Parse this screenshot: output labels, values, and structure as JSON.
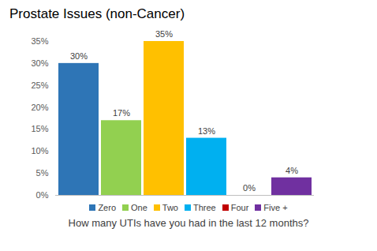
{
  "chart_data": {
    "type": "bar",
    "title": "Prostate Issues (non-Cancer)",
    "x_label": "How many UTIs have you had in the last 12 months?",
    "categories": [
      "Zero",
      "One",
      "Two",
      "Three",
      "Four",
      "Five +"
    ],
    "values": [
      30,
      17,
      35,
      13,
      0,
      4
    ],
    "value_labels": [
      "30%",
      "17%",
      "35%",
      "13%",
      "0%",
      "4%"
    ],
    "colors": [
      "#2e75b6",
      "#92d050",
      "#ffc000",
      "#00b0f0",
      "#c00000",
      "#7030a0"
    ],
    "ylim": [
      0,
      35
    ],
    "yticks": [
      {
        "value": 0,
        "label": "0%"
      },
      {
        "value": 5,
        "label": "5%"
      },
      {
        "value": 10,
        "label": "10%"
      },
      {
        "value": 15,
        "label": "15%"
      },
      {
        "value": 20,
        "label": "20%"
      },
      {
        "value": 25,
        "label": "25%"
      },
      {
        "value": 30,
        "label": "30%"
      },
      {
        "value": 35,
        "label": "35%"
      }
    ],
    "grid": false,
    "data_labels": true,
    "tick_labels": "y",
    "legend": "bottom"
  }
}
